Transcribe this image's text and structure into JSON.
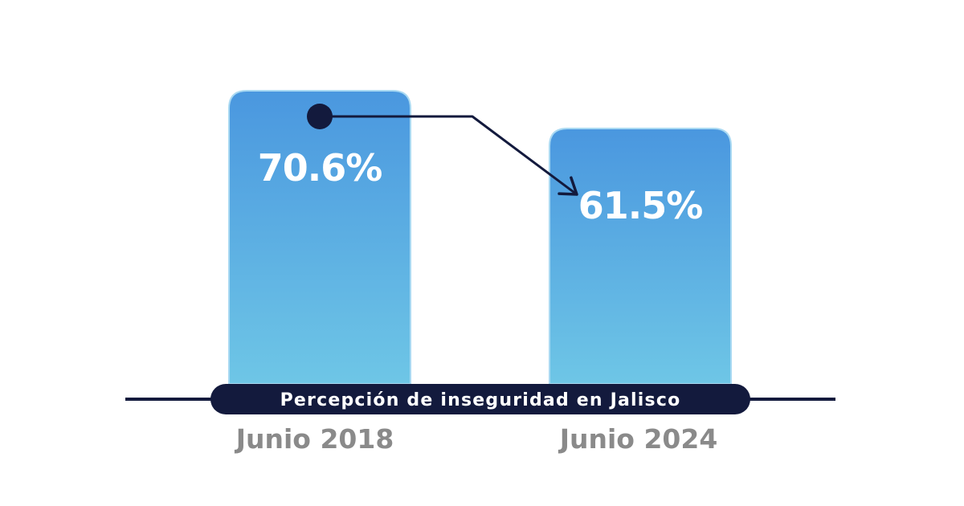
{
  "chart_data": {
    "type": "bar",
    "title": "Percepción de inseguridad en Jalisco",
    "categories": [
      "Junio 2018",
      "Junio 2024"
    ],
    "values": [
      70.6,
      61.5
    ],
    "value_labels": [
      "70.6%",
      "61.5%"
    ],
    "unit": "%",
    "grid": false,
    "legend": "none",
    "annotations": [
      {
        "type": "arrow",
        "from": "Junio 2018",
        "to": "Junio 2024"
      }
    ]
  },
  "colors": {
    "bar_top": "#4a97df",
    "bar_bottom": "#6ec6e6",
    "bar_edge": "#a9d9f2",
    "axis_navy": "#131a3d",
    "label_gray": "#8a8a8a",
    "value_white": "#ffffff"
  }
}
